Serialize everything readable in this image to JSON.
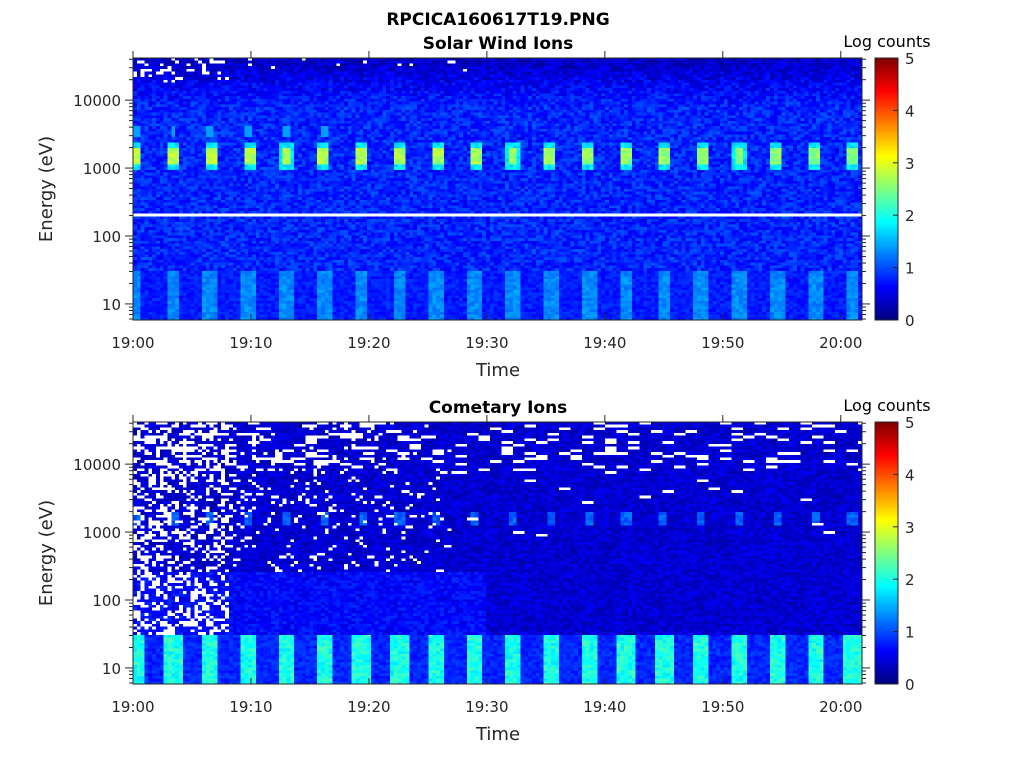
{
  "figure_title": "RPCICA160617T19.PNG",
  "chart_data": [
    {
      "type": "heatmap",
      "title": "Solar Wind Ions",
      "xlabel": "Time",
      "ylabel": "Energy (eV)",
      "xticks": [
        "19:00",
        "19:10",
        "19:20",
        "19:30",
        "19:40",
        "19:50",
        "20:00"
      ],
      "xtick_minutes": [
        0,
        10,
        20,
        30,
        40,
        50,
        60
      ],
      "xlim_minutes": [
        0,
        61.8
      ],
      "yscale": "log",
      "yticks": [
        "10",
        "100",
        "1000",
        "10000"
      ],
      "ytick_values": [
        10,
        100,
        1000,
        10000
      ],
      "ylim": [
        5.8,
        41700
      ],
      "colorbar": {
        "label": "Log counts",
        "clim": [
          0,
          5
        ],
        "ticks": [
          "0",
          "1",
          "2",
          "3",
          "4",
          "5"
        ],
        "colormap": "jet"
      },
      "model": {
        "kind": "solar",
        "pulse_period_min": 3.2,
        "pulse_offset_min": 0.2,
        "peak_energy_eV": 1500,
        "peak_log_counts": 2.8,
        "background_log_counts": 0.8,
        "low_energy_pulse_log_counts": 1.3,
        "data_gap_energy_eV": 200
      }
    },
    {
      "type": "heatmap",
      "title": "Cometary Ions",
      "xlabel": "Time",
      "ylabel": "Energy (eV)",
      "xticks": [
        "19:00",
        "19:10",
        "19:20",
        "19:30",
        "19:40",
        "19:50",
        "20:00"
      ],
      "xtick_minutes": [
        0,
        10,
        20,
        30,
        40,
        50,
        60
      ],
      "xlim_minutes": [
        0,
        61.8
      ],
      "yscale": "log",
      "yticks": [
        "10",
        "100",
        "1000",
        "10000"
      ],
      "ytick_values": [
        10,
        100,
        1000,
        10000
      ],
      "ylim": [
        5.8,
        41700
      ],
      "colorbar": {
        "label": "Log counts",
        "clim": [
          0,
          5
        ],
        "ticks": [
          "0",
          "1",
          "2",
          "3",
          "4",
          "5"
        ],
        "colormap": "jet"
      },
      "model": {
        "kind": "comet",
        "pulse_period_min": 3.2,
        "pulse_offset_min": 0.2,
        "peak_energy_eV": 1500,
        "peak_log_counts": 1.1,
        "background_log_counts": 0.4,
        "low_energy_pulse_log_counts": 2.0
      }
    }
  ]
}
